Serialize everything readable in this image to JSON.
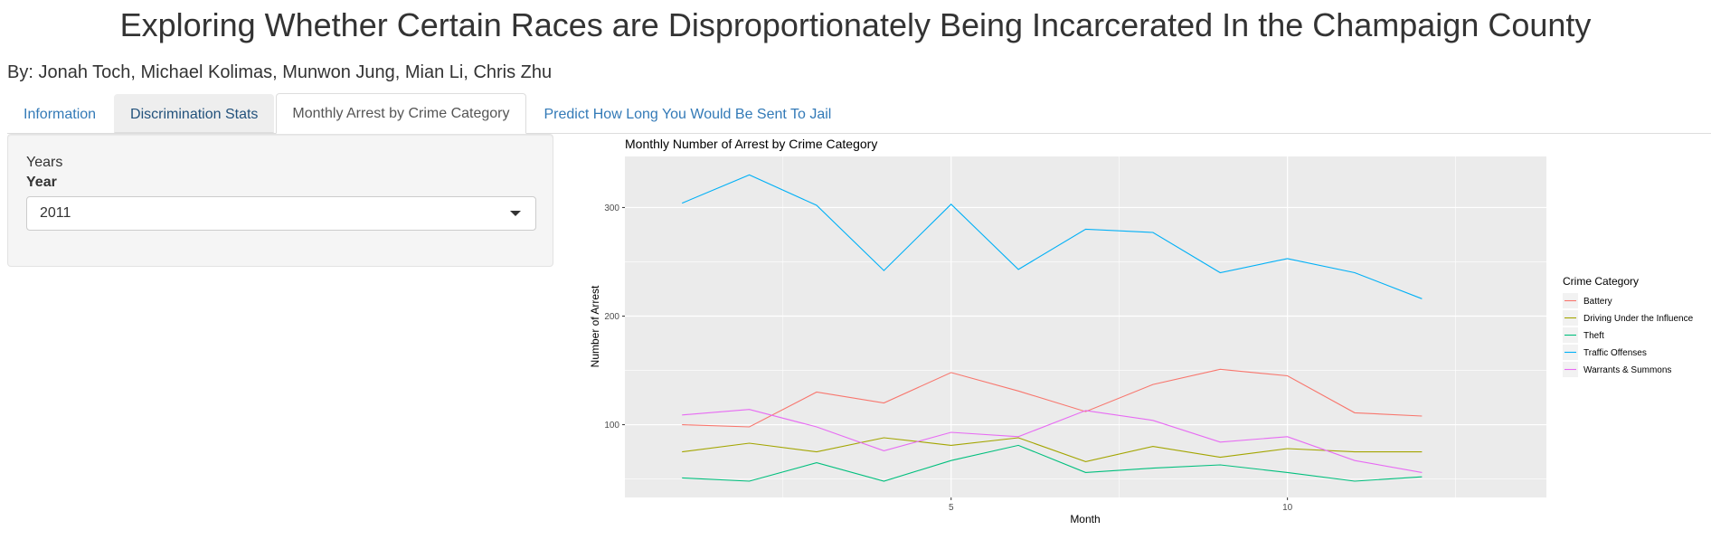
{
  "page": {
    "title": "Exploring Whether Certain Races are Disproportionately Being Incarcerated In the Champaign County",
    "authors": "By: Jonah Toch, Michael Kolimas, Munwon Jung, Mian Li, Chris Zhu"
  },
  "tabs": [
    {
      "label": "Information",
      "state": "default"
    },
    {
      "label": "Discrimination Stats",
      "state": "hover"
    },
    {
      "label": "Monthly Arrest by Crime Category",
      "state": "active"
    },
    {
      "label": "Predict How Long You Would Be Sent To Jail",
      "state": "default"
    }
  ],
  "sidebar": {
    "heading": "Years",
    "year_label": "Year",
    "year_selected": "2011",
    "caret_icon": "caret-down-icon"
  },
  "chart_data": {
    "type": "line",
    "title": "Monthly Number of Arrest by Crime Category",
    "xlabel": "Month",
    "ylabel": "Number of Arrest",
    "x": [
      1,
      2,
      3,
      4,
      5,
      6,
      7,
      8,
      9,
      10,
      11,
      12
    ],
    "xlim": [
      0.15,
      13.85
    ],
    "ylim": [
      33,
      347
    ],
    "xticks": [
      5,
      10
    ],
    "yticks": [
      100,
      200,
      300
    ],
    "grid": true,
    "legend_position": "right",
    "legend_title": "Crime Category",
    "series": [
      {
        "name": "Battery",
        "color": "#F8766D",
        "values": [
          100,
          98,
          130,
          120,
          148,
          131,
          112,
          137,
          151,
          145,
          111,
          108
        ]
      },
      {
        "name": "Driving Under the Influence",
        "color": "#A3A500",
        "values": [
          75,
          83,
          75,
          88,
          81,
          88,
          66,
          80,
          70,
          78,
          75,
          75
        ]
      },
      {
        "name": "Theft",
        "color": "#00BF7D",
        "values": [
          51,
          48,
          65,
          48,
          67,
          81,
          56,
          60,
          63,
          56,
          48,
          52
        ]
      },
      {
        "name": "Traffic Offenses",
        "color": "#00B0F6",
        "values": [
          304,
          330,
          302,
          242,
          303,
          243,
          280,
          277,
          240,
          253,
          240,
          216
        ]
      },
      {
        "name": "Warrants & Summons",
        "color": "#E76BF3",
        "values": [
          109,
          114,
          98,
          76,
          93,
          89,
          113,
          104,
          84,
          89,
          67,
          56
        ]
      }
    ]
  }
}
